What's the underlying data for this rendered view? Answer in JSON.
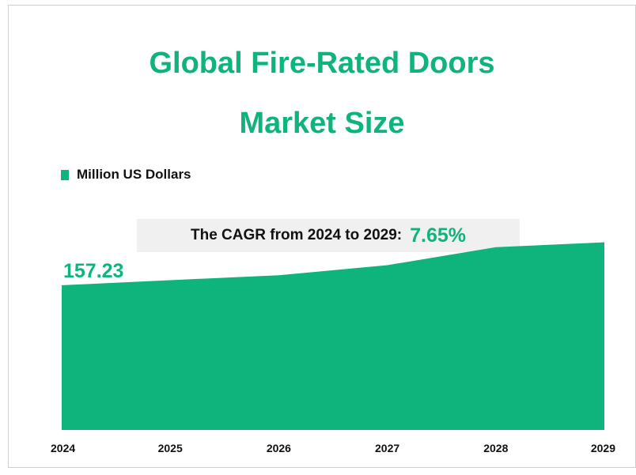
{
  "chart_data": {
    "type": "area",
    "title": "Global Fire-Rated Doors Market Size",
    "title_lines": [
      "Global Fire-Rated Doors",
      "Market Size"
    ],
    "legend": "Million US Dollars",
    "legend_position": "top-left",
    "categories": [
      "2024",
      "2025",
      "2026",
      "2027",
      "2028",
      "2029"
    ],
    "values": [
      157.23,
      165.5,
      173.6,
      190.0,
      219.3,
      227.3
    ],
    "data_label": "157.23",
    "cagr_label": "The CAGR from 2024 to 2029:",
    "cagr_value": "7.65%",
    "ylim": [
      -79,
      250
    ],
    "color": "#0fb47c",
    "grid": false
  }
}
